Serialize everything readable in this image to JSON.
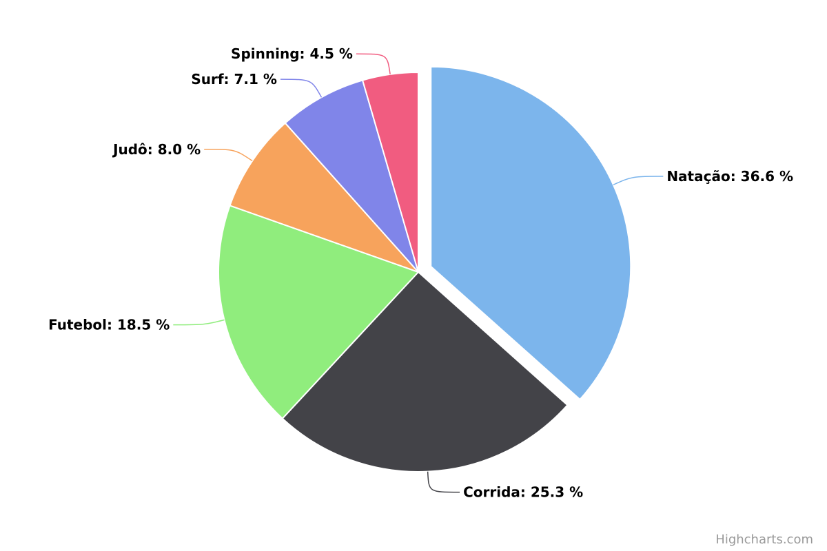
{
  "chart_data": {
    "type": "pie",
    "label_format": "{name}: {value} %",
    "series": [
      {
        "slices": [
          {
            "name": "Natação",
            "value": 36.6,
            "color": "#7cb5ec",
            "sliced": true
          },
          {
            "name": "Corrida",
            "value": 25.3,
            "color": "#434348"
          },
          {
            "name": "Futebol",
            "value": 18.5,
            "color": "#90ed7d"
          },
          {
            "name": "Judô",
            "value": 8.0,
            "color": "#f7a35c"
          },
          {
            "name": "Surf",
            "value": 7.1,
            "color": "#8085e9"
          },
          {
            "name": "Spinning",
            "value": 4.5,
            "color": "#f15c80"
          }
        ]
      }
    ]
  },
  "credits": {
    "text": "Highcharts.com"
  }
}
